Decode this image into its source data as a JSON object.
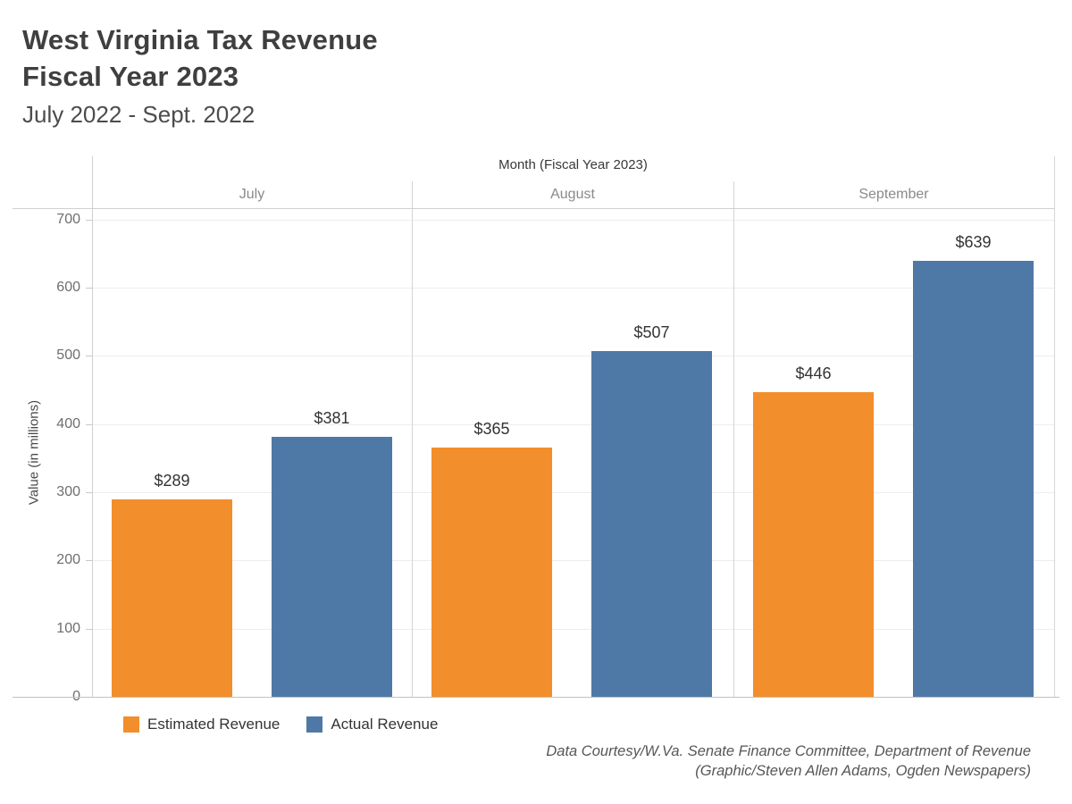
{
  "title": {
    "line1": "West Virginia Tax Revenue",
    "line2": "Fiscal Year 2023",
    "subtitle": "July 2022 - Sept. 2022"
  },
  "chart_data": {
    "type": "bar",
    "facet_title": "Month (Fiscal Year 2023)",
    "categories": [
      "July",
      "August",
      "September"
    ],
    "series": [
      {
        "name": "Estimated Revenue",
        "color": "#f28e2b",
        "values": [
          289,
          365,
          446
        ]
      },
      {
        "name": "Actual Revenue",
        "color": "#4e79a7",
        "values": [
          381,
          507,
          639
        ]
      }
    ],
    "value_prefix": "$",
    "xlabel": "Month (Fiscal Year 2023)",
    "ylabel": "Value (in millions)",
    "yticks": [
      0,
      100,
      200,
      300,
      400,
      500,
      600,
      700
    ],
    "ylim": [
      0,
      716
    ],
    "grid": "horizontal",
    "legend_position": "bottom-left"
  },
  "footer": {
    "line1": "Data Courtesy/W.Va. Senate Finance Committee, Department of Revenue",
    "line2": "(Graphic/Steven Allen Adams, Ogden Newspapers)"
  }
}
